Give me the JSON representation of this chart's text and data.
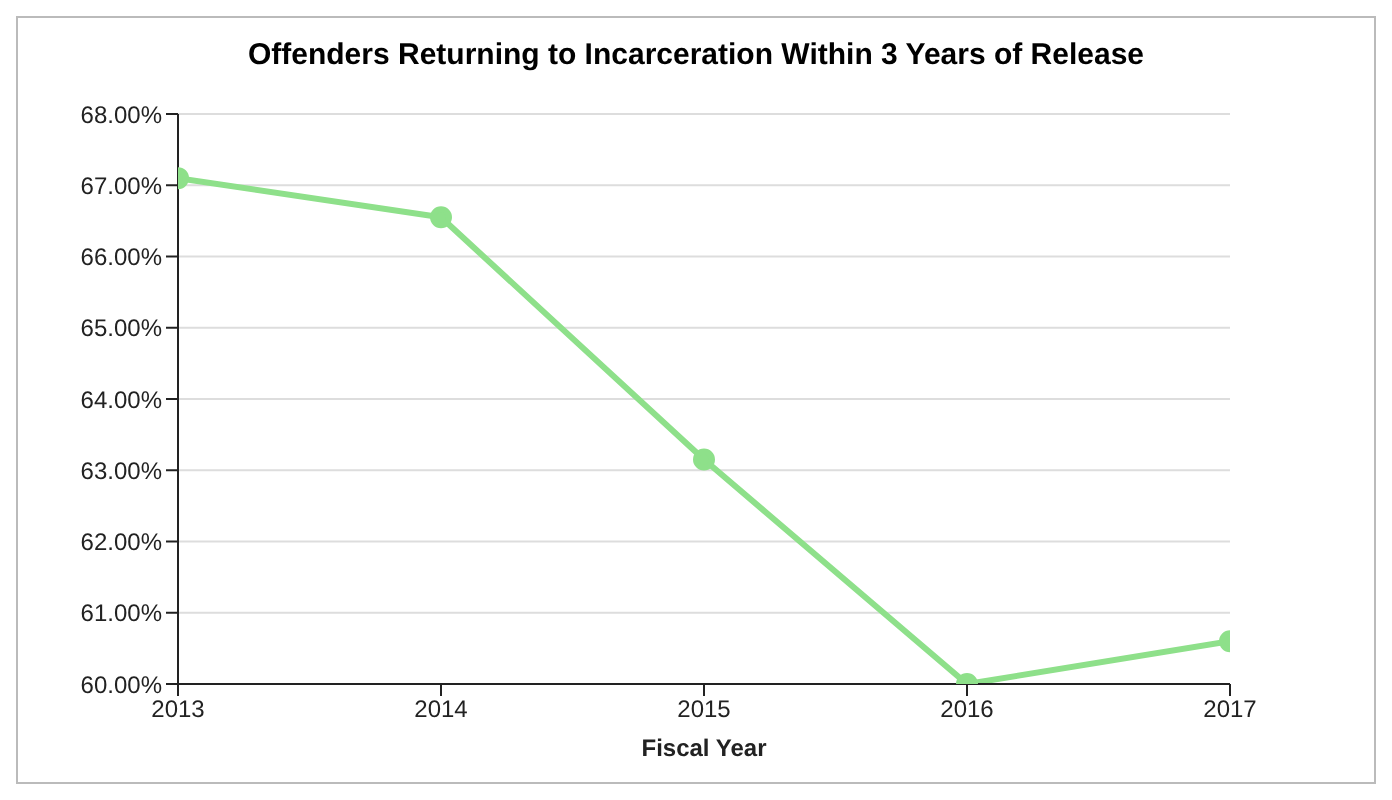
{
  "chart_data": {
    "type": "line",
    "title": "Offenders Returning to Incarceration Within 3 Years of Release",
    "xlabel": "Fiscal Year",
    "x": [
      2013,
      2014,
      2015,
      2016,
      2017
    ],
    "series": [
      {
        "color": "#8ee08a",
        "values": [
          67.1,
          66.55,
          63.15,
          60.0,
          60.6
        ]
      }
    ],
    "xlim": [
      2013,
      2017
    ],
    "xticks": [
      2013,
      2014,
      2015,
      2016,
      2017
    ],
    "ylim": [
      60,
      68
    ],
    "yticks": [
      {
        "value": 60,
        "label": "60.00%"
      },
      {
        "value": 61,
        "label": "61.00%"
      },
      {
        "value": 62,
        "label": "62.00%"
      },
      {
        "value": 63,
        "label": "63.00%"
      },
      {
        "value": 64,
        "label": "64.00%"
      },
      {
        "value": 65,
        "label": "65.00%"
      },
      {
        "value": 66,
        "label": "66.00%"
      },
      {
        "value": 67,
        "label": "67.00%"
      },
      {
        "value": 68,
        "label": "68.00%"
      }
    ],
    "grid": "y",
    "marker": "circle",
    "line_style": "solid",
    "legend": false
  }
}
